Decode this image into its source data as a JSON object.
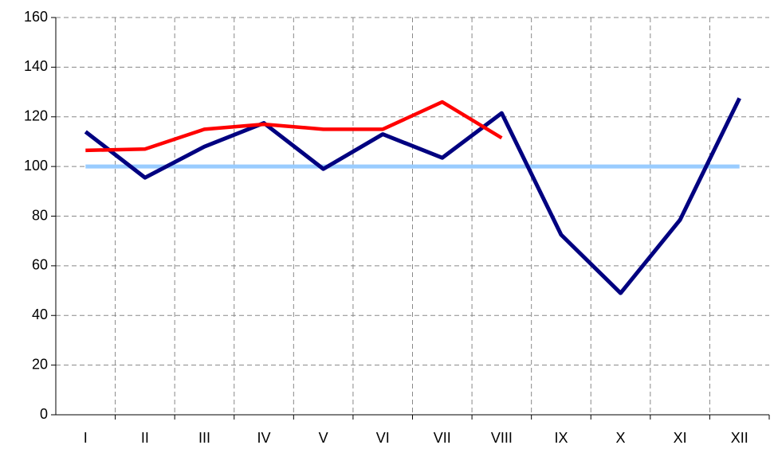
{
  "chart_data": {
    "type": "line",
    "categories": [
      "I",
      "II",
      "III",
      "IV",
      "V",
      "VI",
      "VII",
      "VIII",
      "IX",
      "X",
      "XI",
      "XII"
    ],
    "series": [
      {
        "color": "#99ccff",
        "values": [
          100,
          100,
          100,
          100,
          100,
          100,
          100,
          100,
          100,
          100,
          100,
          100
        ]
      },
      {
        "color": "#000080",
        "values": [
          114,
          95.5,
          108,
          117.5,
          99,
          113,
          103.5,
          121.5,
          72.5,
          49,
          78.5,
          127.5
        ]
      },
      {
        "color": "#ff0000",
        "values": [
          106.5,
          107,
          115,
          117,
          115,
          115,
          126,
          111.5,
          null,
          null,
          null,
          null
        ]
      }
    ],
    "ylim": [
      0,
      160
    ],
    "yticks": [
      0,
      20,
      40,
      60,
      80,
      100,
      120,
      140,
      160
    ],
    "grid": true
  }
}
